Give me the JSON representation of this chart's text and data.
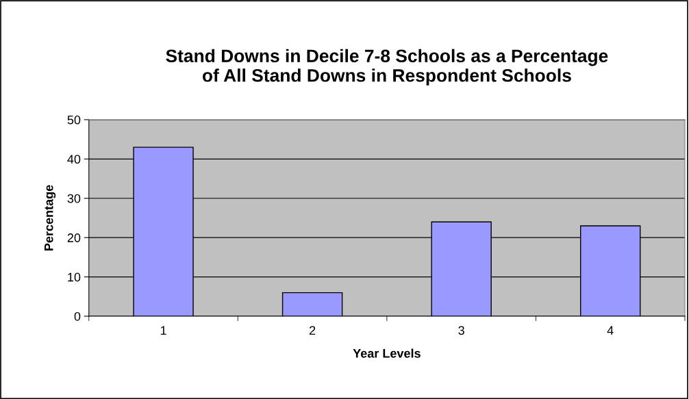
{
  "chart_data": {
    "type": "bar",
    "title": "Stand Downs in Decile 7-8 Schools as a Percentage\nof All Stand Downs in Respondent Schools",
    "xlabel": "Year Levels",
    "ylabel": "Percentage",
    "categories": [
      "1",
      "2",
      "3",
      "4"
    ],
    "values": [
      43,
      6,
      24,
      23
    ],
    "color": "#9999ff",
    "ylim": [
      0,
      50
    ],
    "yticks": [
      0,
      10,
      20,
      30,
      40,
      50
    ],
    "grid": "y",
    "legend": false
  }
}
